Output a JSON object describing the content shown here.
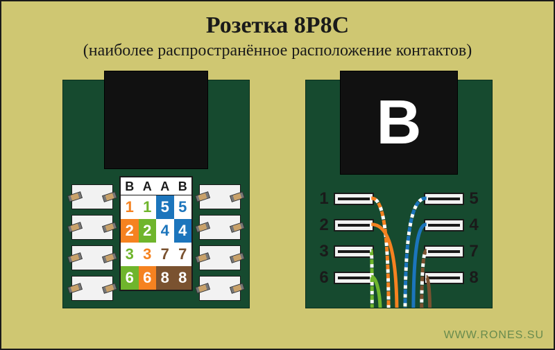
{
  "title": "Розетка 8P8C",
  "subtitle": "(наиболее распространённое расположение контактов)",
  "watermark": "WWW.RONES.SU",
  "colors": {
    "bg": "#cfc772",
    "pcb": "#164a2f",
    "black": "#111111",
    "white": "#ffffff",
    "orange": "#f58220",
    "green": "#6fb52c",
    "blue": "#1c75bc",
    "brown": "#7a5230",
    "text": "#1a1a1a"
  },
  "left": {
    "header": [
      "B",
      "A",
      "A",
      "B"
    ],
    "rows": [
      {
        "vals": [
          "1",
          "1",
          "5",
          "5"
        ],
        "bg": "#ffffff",
        "fg": [
          "#f58220",
          "#6fb52c",
          "#ffffff",
          "#1c75bc"
        ],
        "cellbg": [
          "#ffffff",
          "#ffffff",
          "#1c75bc",
          "#ffffff"
        ]
      },
      {
        "vals": [
          "2",
          "2",
          "4",
          "4"
        ],
        "bg": "#f58220",
        "fg": [
          "#ffffff",
          "#ffffff",
          "#1c75bc",
          "#ffffff"
        ],
        "cellbg": [
          "#f58220",
          "#6fb52c",
          "#ffffff",
          "#1c75bc"
        ]
      },
      {
        "vals": [
          "3",
          "3",
          "7",
          "7"
        ],
        "bg": "#ffffff",
        "fg": [
          "#6fb52c",
          "#f58220",
          "#7a5230",
          "#7a5230"
        ],
        "cellbg": [
          "#ffffff",
          "#ffffff",
          "#ffffff",
          "#ffffff"
        ]
      },
      {
        "vals": [
          "6",
          "6",
          "8",
          "8"
        ],
        "bg": "#6fb52c",
        "fg": [
          "#ffffff",
          "#ffffff",
          "#ffffff",
          "#ffffff"
        ],
        "cellbg": [
          "#6fb52c",
          "#f58220",
          "#7a5230",
          "#7a5230"
        ]
      }
    ]
  },
  "right": {
    "letter": "B",
    "pinsLeft": [
      "1",
      "2",
      "3",
      "6"
    ],
    "pinsRight": [
      "5",
      "4",
      "7",
      "8"
    ],
    "wires": [
      {
        "pin": "3",
        "side": "L",
        "color": "#6fb52c",
        "striped": true,
        "endX": 96
      },
      {
        "pin": "6",
        "side": "L",
        "color": "#6fb52c",
        "striped": false,
        "endX": 108
      },
      {
        "pin": "1",
        "side": "L",
        "color": "#f58220",
        "striped": true,
        "endX": 120
      },
      {
        "pin": "2",
        "side": "L",
        "color": "#f58220",
        "striped": false,
        "endX": 132
      },
      {
        "pin": "5",
        "side": "R",
        "color": "#1c75bc",
        "striped": true,
        "endX": 144
      },
      {
        "pin": "4",
        "side": "R",
        "color": "#1c75bc",
        "striped": false,
        "endX": 156
      },
      {
        "pin": "7",
        "side": "R",
        "color": "#7a5230",
        "striped": true,
        "endX": 168
      },
      {
        "pin": "8",
        "side": "R",
        "color": "#7a5230",
        "striped": false,
        "endX": 180
      }
    ]
  }
}
